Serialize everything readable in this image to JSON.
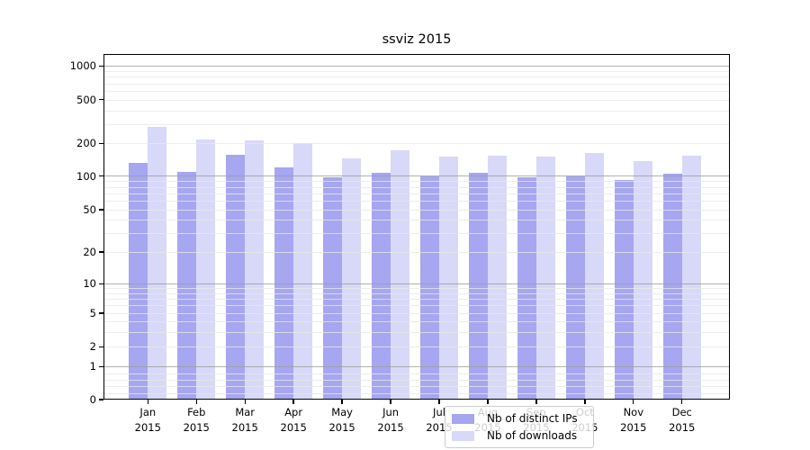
{
  "chart_data": {
    "type": "bar",
    "title": "ssviz 2015",
    "categories": [
      "Jan",
      "Feb",
      "Mar",
      "Apr",
      "May",
      "Jun",
      "Jul",
      "Aug",
      "Sep",
      "Oct",
      "Nov",
      "Dec"
    ],
    "year_label": "2015",
    "yscale": "symlog",
    "ylim": [
      0,
      1000
    ],
    "yticks": [
      0,
      1,
      2,
      5,
      10,
      20,
      50,
      100,
      200,
      500,
      1000
    ],
    "grid": true,
    "legend_position": "lower center",
    "series": [
      {
        "name": "Nb of distinct IPs",
        "color": "#a6a6f1",
        "values": [
          133,
          109,
          156,
          121,
          98,
          108,
          100,
          107,
          97,
          100,
          93,
          105
        ]
      },
      {
        "name": "Nb of downloads",
        "color": "#d8d8f8",
        "values": [
          285,
          218,
          215,
          200,
          147,
          172,
          151,
          155,
          152,
          165,
          139,
          155
        ]
      }
    ]
  },
  "colors": {
    "background": "#ffffff",
    "major_grid": "#b3b3b3",
    "minor_grid": "#e9e9e9",
    "spine": "#000000",
    "text": "#000000",
    "legend_bg": "rgba(255,255,255,0.8)",
    "legend_border": "#cccccc"
  }
}
